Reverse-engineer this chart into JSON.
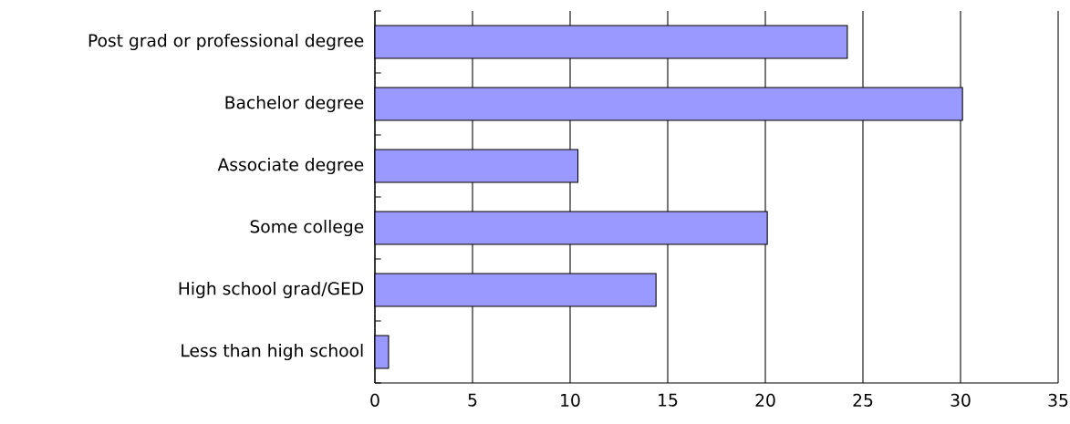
{
  "chart_data": {
    "type": "bar",
    "orientation": "horizontal",
    "categories": [
      "Post grad or professional degree",
      "Bachelor degree",
      "Associate degree",
      "Some college",
      "High school grad/GED",
      "Less than high school"
    ],
    "values": [
      24.2,
      30.1,
      10.4,
      20.1,
      14.4,
      0.7
    ],
    "color": "#9999ff",
    "xlim": [
      0,
      35
    ],
    "xticks": [
      0,
      5,
      10,
      15,
      20,
      25,
      30,
      35
    ],
    "grid": "x"
  }
}
